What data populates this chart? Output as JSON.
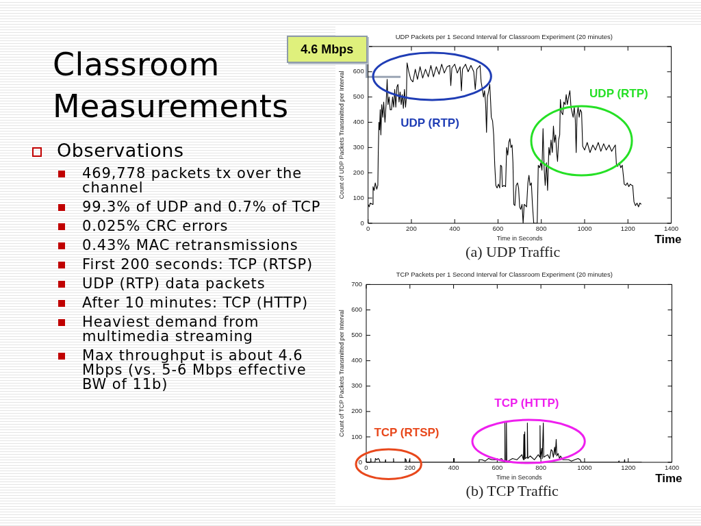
{
  "chart_data": [
    {
      "type": "other",
      "title": "Classroom Measurements",
      "subtitle": "Observations",
      "annotations": [
        "469,778 packets tx over the channel",
        "99.3% of UDP and 0.7% of TCP",
        "0.025% CRC errors",
        "0.43% MAC retransmissions",
        "First 200 seconds: TCP (RTSP)",
        "UDP (RTP) data packets",
        "After 10 minutes: TCP (HTTP)",
        "Heaviest demand from multimedia streaming",
        "Max throughput is about 4.6 Mbps (vs. 5-6 Mbps effective BW of 11b)"
      ]
    },
    {
      "type": "line",
      "title": "UDP Packets per 1 Second Interval for Classroom Experiment (20 minutes)",
      "xlabel": "Time in Seconds",
      "ylabel": "Count of UDP Packets Transmitted per Interval",
      "color": "#000000",
      "x": [
        0,
        5,
        10,
        20,
        23,
        28,
        33,
        40,
        45,
        47,
        50,
        53,
        56,
        59,
        63,
        68,
        72,
        78,
        83,
        88,
        92,
        97,
        102,
        108,
        113,
        118,
        123,
        128,
        133,
        138,
        143,
        148,
        153,
        158,
        163,
        168,
        173,
        177,
        180,
        188,
        197,
        207,
        218,
        228,
        240,
        252,
        265,
        278,
        290,
        302,
        315,
        328,
        340,
        352,
        365,
        377,
        382,
        387,
        400,
        412,
        425,
        431,
        436,
        450,
        462,
        475,
        488,
        495,
        502,
        512,
        517,
        522,
        528,
        533,
        538,
        543,
        547,
        551,
        556,
        562,
        566,
        569,
        575,
        580,
        585,
        590,
        596,
        602,
        608,
        612,
        617,
        620,
        628,
        635,
        640,
        645,
        650,
        655,
        660,
        665,
        669,
        673,
        678,
        684,
        690,
        695,
        700,
        705,
        711,
        716,
        721,
        727,
        732,
        738,
        743,
        748,
        754,
        759,
        765,
        781,
        786,
        792,
        798,
        803,
        808,
        813,
        818,
        824,
        829,
        835,
        840,
        845,
        851,
        856,
        861,
        866,
        871,
        875,
        880,
        885,
        888,
        893,
        899,
        904,
        910,
        915,
        920,
        926,
        932,
        937,
        942,
        947,
        952,
        957,
        961,
        965,
        970,
        975,
        980,
        986,
        991,
        1000,
        1012,
        1025,
        1038,
        1050,
        1063,
        1075,
        1088,
        1100,
        1113,
        1125,
        1138,
        1142,
        1147,
        1153,
        1160,
        1167,
        1174,
        1183,
        1190,
        1197,
        1204,
        1211,
        1218,
        1222,
        1228,
        1235,
        1242,
        1249,
        1255,
        1262
      ],
      "values": [
        75,
        65,
        80,
        75,
        145,
        130,
        160,
        135,
        150,
        280,
        400,
        370,
        450,
        350,
        470,
        420,
        480,
        400,
        470,
        570,
        470,
        500,
        450,
        450,
        500,
        460,
        530,
        460,
        540,
        550,
        480,
        520,
        470,
        510,
        455,
        530,
        460,
        500,
        635,
        600,
        570,
        560,
        610,
        570,
        620,
        575,
        610,
        580,
        625,
        580,
        620,
        590,
        630,
        595,
        620,
        625,
        545,
        615,
        630,
        595,
        620,
        525,
        610,
        630,
        600,
        625,
        600,
        530,
        610,
        620,
        625,
        560,
        530,
        500,
        525,
        470,
        360,
        500,
        520,
        550,
        480,
        420,
        405,
        350,
        230,
        150,
        140,
        155,
        140,
        230,
        225,
        145,
        150,
        145,
        300,
        270,
        320,
        335,
        300,
        310,
        240,
        75,
        70,
        150,
        160,
        140,
        65,
        55,
        75,
        0,
        75,
        70,
        65,
        160,
        190,
        150,
        160,
        75,
        0,
        0,
        230,
        220,
        240,
        210,
        375,
        220,
        150,
        240,
        130,
        300,
        270,
        330,
        280,
        385,
        320,
        350,
        280,
        245,
        330,
        350,
        490,
        440,
        430,
        480,
        470,
        510,
        470,
        500,
        525,
        460,
        440,
        420,
        460,
        410,
        280,
        430,
        460,
        420,
        450,
        440,
        305,
        290,
        320,
        280,
        310,
        290,
        320,
        285,
        315,
        290,
        310,
        285,
        305,
        310,
        230,
        225,
        240,
        220,
        230,
        155,
        150,
        160,
        145,
        155,
        150,
        150,
        85,
        70,
        80,
        65,
        80,
        75
      ],
      "xlim": [
        0,
        1400
      ],
      "ylim": [
        0,
        700
      ],
      "xticks": [
        0,
        200,
        400,
        600,
        800,
        1000,
        1200,
        1400
      ],
      "yticks": [
        0,
        100,
        200,
        300,
        400,
        500,
        600,
        {
          "value": 700,
          "label": null
        }
      ],
      "ref_lines": [
        {
          "axis": "y",
          "value": 580,
          "label": "4.6 Mbps",
          "color": "#9aa4b4"
        }
      ],
      "annotations": [
        "Time",
        "(a) UDP Traffic",
        "UDP (RTP)",
        "UDP (RTP)"
      ]
    },
    {
      "type": "line",
      "title": "TCP Packets per 1 Second Interval for Classroom Experiment (20 minutes)",
      "xlabel": "Time in Seconds",
      "ylabel": "Count of TCP Packets Transmitted per Interval",
      "color": "#000000",
      "x": [
        0,
        20,
        21,
        22,
        40,
        42,
        48,
        55,
        60,
        63,
        87,
        88,
        89,
        124,
        125,
        126,
        177,
        178,
        182,
        183,
        197,
        198,
        199,
        401,
        402,
        403,
        515,
        517,
        530,
        545,
        560,
        575,
        590,
        605,
        620,
        628,
        634,
        635,
        637,
        641,
        642,
        644,
        650,
        670,
        690,
        713,
        720,
        722,
        724,
        726,
        728,
        737,
        738,
        740,
        751,
        770,
        788,
        795,
        796,
        798,
        804,
        806,
        811,
        813,
        831,
        840,
        847,
        852,
        857,
        863,
        866,
        870,
        873,
        879,
        885,
        890,
        900,
        915,
        927,
        940,
        955,
        970,
        980,
        985,
        1156,
        1157,
        1158,
        1182,
        1183,
        1184,
        1262
      ],
      "values": [
        0,
        0,
        15,
        0,
        0,
        15,
        10,
        15,
        10,
        0,
        0,
        10,
        0,
        0,
        15,
        0,
        0,
        15,
        10,
        0,
        0,
        10,
        0,
        0,
        15,
        0,
        0,
        10,
        10,
        5,
        15,
        10,
        10,
        10,
        15,
        5,
        0,
        160,
        5,
        5,
        160,
        0,
        5,
        15,
        10,
        30,
        10,
        110,
        10,
        120,
        15,
        20,
        155,
        15,
        25,
        10,
        30,
        20,
        145,
        15,
        55,
        15,
        155,
        20,
        30,
        15,
        50,
        45,
        20,
        60,
        30,
        90,
        25,
        35,
        15,
        25,
        10,
        10,
        10,
        5,
        10,
        15,
        10,
        0,
        0,
        5,
        0,
        0,
        10,
        0,
        0
      ],
      "xlim": [
        0,
        1400
      ],
      "ylim": [
        0,
        700
      ],
      "xticks": [
        0,
        200,
        400,
        600,
        800,
        1000,
        1200,
        1400
      ],
      "yticks": [
        0,
        100,
        200,
        300,
        400,
        500,
        600,
        700
      ],
      "annotations": [
        "Time",
        "(b) TCP Traffic",
        "TCP (HTTP)",
        "TCP (RTSP)"
      ]
    }
  ]
}
